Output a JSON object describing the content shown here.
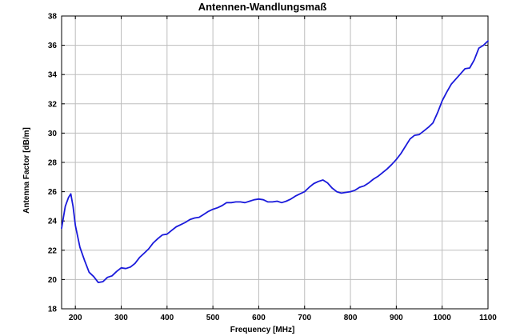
{
  "chart_data": {
    "type": "line",
    "title": "Antennen-Wandlungsmaß",
    "xlabel": "Frequency [MHz]",
    "ylabel": "Antenna Factor [dB/m]",
    "xlim": [
      170,
      1100
    ],
    "ylim": [
      18,
      38
    ],
    "xticks": [
      200,
      300,
      400,
      500,
      600,
      700,
      800,
      900,
      1000,
      1100
    ],
    "yticks": [
      18,
      20,
      22,
      24,
      26,
      28,
      30,
      32,
      34,
      36,
      38
    ],
    "grid": true,
    "colors": {
      "line": "#1a1adb"
    },
    "series": [
      {
        "x": [
          170,
          178,
          185,
          190,
          195,
          200,
          210,
          220,
          230,
          240,
          250,
          260,
          270,
          280,
          290,
          300,
          310,
          320,
          330,
          340,
          350,
          360,
          370,
          380,
          390,
          400,
          410,
          420,
          430,
          440,
          450,
          460,
          470,
          480,
          490,
          500,
          510,
          520,
          530,
          540,
          550,
          560,
          570,
          580,
          590,
          600,
          610,
          620,
          630,
          640,
          650,
          660,
          670,
          680,
          690,
          700,
          710,
          720,
          730,
          740,
          750,
          760,
          770,
          780,
          790,
          800,
          810,
          820,
          830,
          840,
          850,
          860,
          870,
          880,
          890,
          900,
          910,
          920,
          930,
          940,
          950,
          960,
          970,
          980,
          990,
          1000,
          1010,
          1020,
          1030,
          1040,
          1050,
          1060,
          1070,
          1080,
          1090,
          1100
        ],
        "y": [
          23.5,
          25.0,
          25.6,
          25.85,
          25.0,
          23.7,
          22.2,
          21.3,
          20.5,
          20.2,
          19.8,
          19.85,
          20.15,
          20.25,
          20.55,
          20.8,
          20.75,
          20.85,
          21.1,
          21.5,
          21.8,
          22.1,
          22.5,
          22.8,
          23.05,
          23.1,
          23.35,
          23.6,
          23.75,
          23.9,
          24.1,
          24.2,
          24.25,
          24.45,
          24.65,
          24.8,
          24.9,
          25.05,
          25.25,
          25.25,
          25.3,
          25.3,
          25.25,
          25.35,
          25.45,
          25.5,
          25.45,
          25.3,
          25.3,
          25.35,
          25.25,
          25.35,
          25.5,
          25.7,
          25.85,
          26.0,
          26.3,
          26.55,
          26.7,
          26.8,
          26.6,
          26.25,
          26.0,
          25.9,
          25.95,
          26.0,
          26.1,
          26.3,
          26.4,
          26.6,
          26.85,
          27.05,
          27.3,
          27.55,
          27.85,
          28.2,
          28.6,
          29.1,
          29.6,
          29.85,
          29.9,
          30.15,
          30.4,
          30.7,
          31.4,
          32.2,
          32.8,
          33.35,
          33.7,
          34.05,
          34.4,
          34.45,
          35.0,
          35.8,
          36.0,
          36.3
        ]
      }
    ]
  }
}
